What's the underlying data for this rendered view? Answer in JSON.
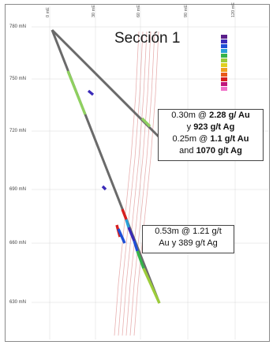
{
  "section": {
    "title": "Sección 1",
    "y_labels": [
      "780 mN",
      "750 mN",
      "720 mN",
      "690 mN",
      "660 mN",
      "630 mN"
    ],
    "x_labels": [
      "0 mE",
      "30 mE",
      "60 mE",
      "90 mE",
      "120 mE"
    ]
  },
  "callouts": {
    "upper": {
      "l1_pre": "0.30m @ ",
      "l1_bold": "2.28 g/ Au",
      "l2_pre": "y ",
      "l2_bold": "923 g/t Ag",
      "l3_pre": "0.25m @ ",
      "l3_bold": "1.1 g/t Au",
      "l4_pre": "and ",
      "l4_bold": "1070 g/t Ag"
    },
    "lower": {
      "l1": "0.53m @ 1.21 g/t",
      "l2": "Au y 389 g/t Ag"
    }
  },
  "legend": {
    "colors": [
      "#5a1f8a",
      "#3b2bb8",
      "#1f4fd6",
      "#2aa0d8",
      "#35b34a",
      "#9ccc3a",
      "#e0d020",
      "#f0a020",
      "#e85a1a",
      "#d81f1f",
      "#c0157a",
      "#f070c8"
    ]
  }
}
